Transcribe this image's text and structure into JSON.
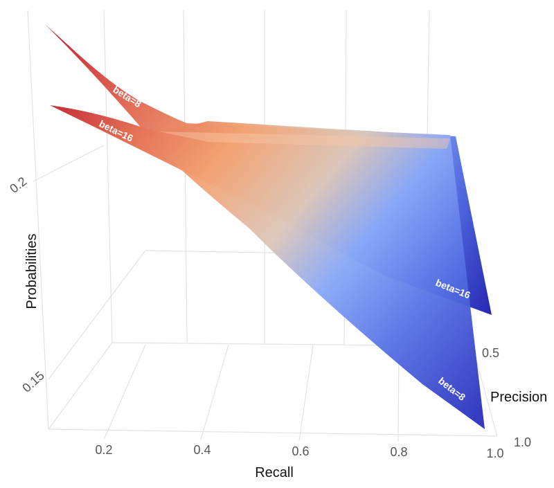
{
  "chart_data": {
    "type": "surface3d",
    "title": "",
    "axes": {
      "x": {
        "label": "Recall",
        "ticks": [
          "0.2",
          "0.4",
          "0.6",
          "0.8",
          "1.0"
        ],
        "range": [
          0.1,
          1.0
        ]
      },
      "y": {
        "label": "Precision",
        "ticks": [
          "0.5",
          "1.0"
        ],
        "range": [
          0.1,
          1.0
        ]
      },
      "z": {
        "label": "Probabilities",
        "ticks": [
          "0.15",
          "0.2"
        ],
        "range": [
          0.13,
          0.24
        ]
      }
    },
    "grid": true,
    "colorscale": [
      "#b40426",
      "#f4a582",
      "#dddddd",
      "#7b9ff9",
      "#3b4cc0"
    ],
    "series": [
      {
        "name": "beta=8",
        "label": "beta=8"
      },
      {
        "name": "beta=16",
        "label": "beta=16"
      }
    ]
  }
}
